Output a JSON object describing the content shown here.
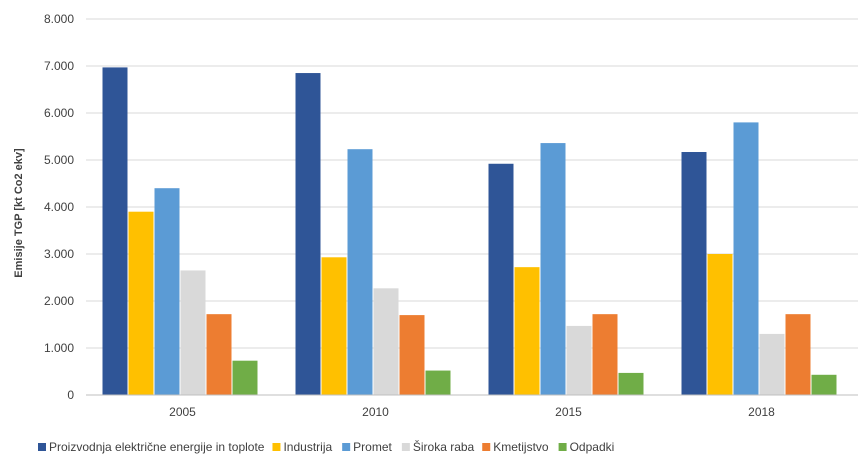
{
  "chart_data": {
    "type": "bar",
    "title": "",
    "xlabel": "",
    "ylabel": "Emisije TGP [kt Co2 ekv]",
    "ylim": [
      0,
      8000
    ],
    "yticks": [
      0,
      1000,
      2000,
      3000,
      4000,
      5000,
      6000,
      7000,
      8000
    ],
    "ytick_labels": [
      "0",
      "1.000",
      "2.000",
      "3.000",
      "4.000",
      "5.000",
      "6.000",
      "7.000",
      "8.000"
    ],
    "grid": true,
    "legend_position": "bottom",
    "categories": [
      "2005",
      "2010",
      "2015",
      "2018"
    ],
    "series": [
      {
        "name": "Proizvodnja električne energije in toplote",
        "color": "#2f5597",
        "values": [
          6970,
          6850,
          4920,
          5170
        ]
      },
      {
        "name": "Industrija",
        "color": "#ffc000",
        "values": [
          3900,
          2930,
          2720,
          3000
        ]
      },
      {
        "name": "Promet",
        "color": "#5b9bd5",
        "values": [
          4400,
          5230,
          5360,
          5800
        ]
      },
      {
        "name": "Široka raba",
        "color": "#d9d9d9",
        "values": [
          2650,
          2270,
          1470,
          1300
        ]
      },
      {
        "name": "Kmetijstvo",
        "color": "#ed7d31",
        "values": [
          1720,
          1700,
          1720,
          1720
        ]
      },
      {
        "name": "Odpadki",
        "color": "#70ad47",
        "values": [
          730,
          520,
          470,
          430
        ]
      }
    ]
  }
}
